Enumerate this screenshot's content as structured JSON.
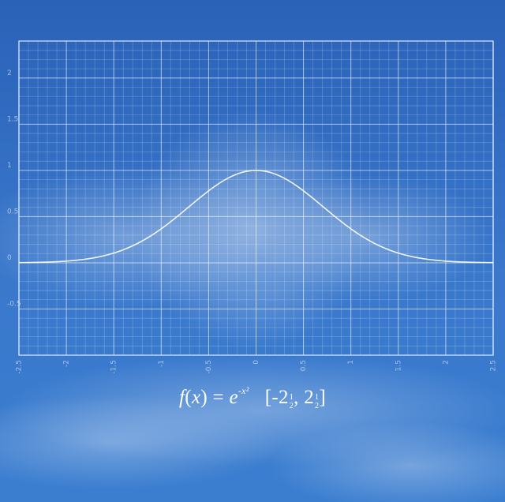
{
  "colors": {
    "sky_top": "#2a62b8",
    "sky_mid": "#3a78cc",
    "sky_bottom": "#3b7ed0",
    "grid": "#ffffff",
    "curve": "#ffffff"
  },
  "chart_data": {
    "type": "line",
    "title": "",
    "xlabel": "",
    "ylabel": "",
    "xlim": [
      -2.5,
      2.5
    ],
    "ylim": [
      -1,
      2.4
    ],
    "grid": true,
    "minor_grid_step": 0.1,
    "x_ticks": [
      -2.5,
      -2,
      -1.5,
      -1,
      -0.5,
      0,
      0.5,
      1,
      1.5,
      2,
      2.5
    ],
    "x_tick_labels": [
      "-2.5",
      "-2",
      "-1.5",
      "-1",
      "-0.5",
      "0",
      "0.5",
      "1",
      "1.5",
      "2",
      "2.5"
    ],
    "y_ticks": [
      -0.5,
      0,
      0.5,
      1,
      1.5,
      2
    ],
    "y_tick_labels": [
      "-0.5",
      "0",
      "0.5",
      "1",
      "1.5",
      "2"
    ],
    "series": [
      {
        "function": "exp(-x^2)",
        "domain": [
          -2.5,
          2.5
        ],
        "x": [
          -2.5,
          -2.25,
          -2,
          -1.75,
          -1.5,
          -1.25,
          -1,
          -0.75,
          -0.5,
          -0.25,
          0,
          0.25,
          0.5,
          0.75,
          1,
          1.25,
          1.5,
          1.75,
          2,
          2.25,
          2.5
        ],
        "y": [
          0.0019,
          0.0063,
          0.0183,
          0.0468,
          0.1054,
          0.2096,
          0.3679,
          0.5698,
          0.7788,
          0.9394,
          1,
          0.9394,
          0.7788,
          0.5698,
          0.3679,
          0.2096,
          0.1054,
          0.0468,
          0.0183,
          0.0063,
          0.0019
        ]
      }
    ]
  },
  "formula": {
    "lhs": "f",
    "arg_open": "(",
    "arg": "x",
    "arg_close": ")",
    "equals": " = ",
    "base": "e",
    "exponent": "-x²",
    "interval_open": "[-2",
    "half_num": "1",
    "half_den": "2",
    "sep": ", 2",
    "interval_close": "]"
  }
}
